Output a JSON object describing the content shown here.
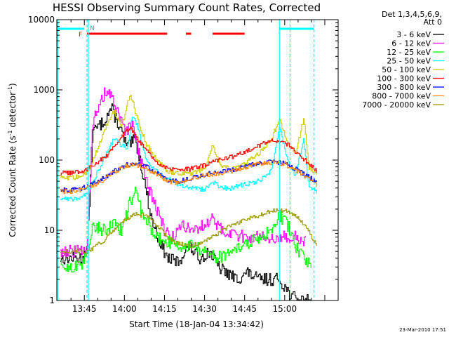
{
  "chart_data": {
    "type": "line",
    "title": "HESSI Observing Summary Count Rates, Corrected",
    "xlabel": "Start Time (18-Jan-04 13:34:42)",
    "ylabel": "Corrected Count Rate (s",
    "ylabel_sup1": "-1",
    "ylabel_mid": " detector",
    "ylabel_sup2": "-1",
    "ylabel_end": ")",
    "y_scale": "log",
    "ylim": [
      1,
      10000
    ],
    "xlim": [
      "13:34:42",
      "15:20:00"
    ],
    "x_ticks": [
      "13:45",
      "14:00",
      "14:15",
      "14:30",
      "14:45",
      "15:00"
    ],
    "y_ticks": [
      "1",
      "10",
      "100",
      "1000",
      "10000"
    ],
    "grid": false,
    "legend_position": "top-right",
    "legend_header": [
      "Det 1,3,4,5,6,9,",
      "Att 0"
    ],
    "timestamp": "23-Mar-2010 17:51",
    "markers": {
      "flare_flag": "F",
      "night_flag": "N"
    },
    "flare_flag_intervals": [
      [
        "13:46",
        "14:16"
      ],
      [
        "14:23",
        "14:25"
      ],
      [
        "14:33",
        "14:45"
      ]
    ],
    "attenuator_bars": [
      [
        "13:35",
        "13:45"
      ],
      [
        "14:58",
        "15:11"
      ]
    ],
    "vertical_lines": [
      {
        "time": "13:35",
        "style": "solid"
      },
      {
        "time": "13:46",
        "style": "dashed"
      },
      {
        "time": "13:46:30",
        "style": "solid"
      },
      {
        "time": "14:58",
        "style": "solid"
      },
      {
        "time": "15:02",
        "style": "dashed"
      },
      {
        "time": "15:11",
        "style": "dashed"
      }
    ],
    "series": [
      {
        "name": "3 - 6 keV",
        "color": "#000000",
        "points": [
          [
            "13:36",
            4
          ],
          [
            "13:44",
            4
          ],
          [
            "13:46",
            5
          ],
          [
            "13:48",
            250
          ],
          [
            "13:52",
            350
          ],
          [
            "13:55",
            550
          ],
          [
            "13:58",
            300
          ],
          [
            "14:01",
            150
          ],
          [
            "14:04",
            200
          ],
          [
            "14:07",
            60
          ],
          [
            "14:10",
            15
          ],
          [
            "14:13",
            7
          ],
          [
            "14:16",
            4
          ],
          [
            "14:20",
            3.5
          ],
          [
            "14:24",
            6
          ],
          [
            "14:28",
            4
          ],
          [
            "14:32",
            5
          ],
          [
            "14:35",
            3
          ],
          [
            "14:38",
            2.5
          ],
          [
            "14:42",
            2
          ],
          [
            "14:46",
            2.5
          ],
          [
            "14:50",
            2
          ],
          [
            "14:55",
            2
          ],
          [
            "14:58",
            2
          ],
          [
            "15:02",
            1.2
          ],
          [
            "15:05",
            1
          ],
          [
            "15:10",
            1
          ]
        ]
      },
      {
        "name": "6 - 12 keV",
        "color": "#ff00ff",
        "points": [
          [
            "13:36",
            5
          ],
          [
            "13:44",
            5
          ],
          [
            "13:46",
            6
          ],
          [
            "13:48",
            350
          ],
          [
            "13:50",
            500
          ],
          [
            "13:53",
            1000
          ],
          [
            "13:55",
            800
          ],
          [
            "13:58",
            400
          ],
          [
            "14:00",
            250
          ],
          [
            "14:03",
            300
          ],
          [
            "14:06",
            100
          ],
          [
            "14:09",
            40
          ],
          [
            "14:12",
            20
          ],
          [
            "14:15",
            10
          ],
          [
            "14:18",
            8
          ],
          [
            "14:22",
            12
          ],
          [
            "14:26",
            10
          ],
          [
            "14:30",
            12
          ],
          [
            "14:33",
            15
          ],
          [
            "14:36",
            10
          ],
          [
            "14:40",
            9
          ],
          [
            "14:45",
            8
          ],
          [
            "14:50",
            8
          ],
          [
            "14:55",
            8
          ],
          [
            "15:00",
            8
          ],
          [
            "15:04",
            8
          ],
          [
            "15:08",
            7
          ]
        ]
      },
      {
        "name": "12 - 25 keV",
        "color": "#00ff00",
        "points": [
          [
            "13:36",
            3
          ],
          [
            "13:44",
            3
          ],
          [
            "13:46",
            5
          ],
          [
            "13:48",
            12
          ],
          [
            "13:52",
            10
          ],
          [
            "13:56",
            12
          ],
          [
            "13:59",
            10
          ],
          [
            "14:02",
            25
          ],
          [
            "14:04",
            35
          ],
          [
            "14:06",
            20
          ],
          [
            "14:09",
            12
          ],
          [
            "14:12",
            8
          ],
          [
            "14:15",
            7
          ],
          [
            "14:20",
            6
          ],
          [
            "14:25",
            6
          ],
          [
            "14:30",
            5
          ],
          [
            "14:35",
            4
          ],
          [
            "14:40",
            5
          ],
          [
            "14:45",
            6
          ],
          [
            "14:50",
            8
          ],
          [
            "14:55",
            10
          ],
          [
            "14:58",
            16
          ],
          [
            "15:01",
            12
          ],
          [
            "15:04",
            6
          ],
          [
            "15:07",
            4
          ],
          [
            "15:10",
            3
          ]
        ]
      },
      {
        "name": "25 - 50 keV",
        "color": "#00ffff",
        "points": [
          [
            "13:36",
            28
          ],
          [
            "13:40",
            28
          ],
          [
            "13:44",
            30
          ],
          [
            "13:46",
            32
          ],
          [
            "13:50",
            70
          ],
          [
            "13:53",
            120
          ],
          [
            "13:56",
            200
          ],
          [
            "13:59",
            160
          ],
          [
            "14:01",
            150
          ],
          [
            "14:03",
            450
          ],
          [
            "14:05",
            300
          ],
          [
            "14:08",
            100
          ],
          [
            "14:12",
            70
          ],
          [
            "14:16",
            55
          ],
          [
            "14:20",
            45
          ],
          [
            "14:25",
            40
          ],
          [
            "14:30",
            38
          ],
          [
            "14:33",
            50
          ],
          [
            "14:36",
            40
          ],
          [
            "14:40",
            40
          ],
          [
            "14:45",
            45
          ],
          [
            "14:50",
            50
          ],
          [
            "14:55",
            70
          ],
          [
            "14:58",
            300
          ],
          [
            "15:01",
            100
          ],
          [
            "15:04",
            60
          ],
          [
            "15:07",
            200
          ],
          [
            "15:09",
            40
          ],
          [
            "15:12",
            35
          ]
        ]
      },
      {
        "name": "50 - 100 keV",
        "color": "#cccc00",
        "points": [
          [
            "13:36",
            55
          ],
          [
            "13:40",
            55
          ],
          [
            "13:44",
            60
          ],
          [
            "13:46",
            65
          ],
          [
            "13:50",
            150
          ],
          [
            "13:53",
            300
          ],
          [
            "13:56",
            500
          ],
          [
            "13:59",
            300
          ],
          [
            "14:02",
            900
          ],
          [
            "14:04",
            500
          ],
          [
            "14:08",
            170
          ],
          [
            "14:12",
            100
          ],
          [
            "14:16",
            70
          ],
          [
            "14:20",
            65
          ],
          [
            "14:25",
            65
          ],
          [
            "14:30",
            75
          ],
          [
            "14:33",
            160
          ],
          [
            "14:36",
            80
          ],
          [
            "14:40",
            75
          ],
          [
            "14:45",
            90
          ],
          [
            "14:50",
            120
          ],
          [
            "14:55",
            200
          ],
          [
            "14:58",
            380
          ],
          [
            "15:01",
            180
          ],
          [
            "15:04",
            120
          ],
          [
            "15:07",
            400
          ],
          [
            "15:09",
            80
          ],
          [
            "15:12",
            60
          ]
        ]
      },
      {
        "name": "100 - 300 keV",
        "color": "#ff0000",
        "points": [
          [
            "13:36",
            65
          ],
          [
            "13:40",
            65
          ],
          [
            "13:44",
            70
          ],
          [
            "13:46",
            75
          ],
          [
            "13:50",
            95
          ],
          [
            "13:54",
            120
          ],
          [
            "13:58",
            200
          ],
          [
            "14:02",
            300
          ],
          [
            "14:05",
            200
          ],
          [
            "14:08",
            140
          ],
          [
            "14:12",
            95
          ],
          [
            "14:16",
            75
          ],
          [
            "14:20",
            72
          ],
          [
            "14:25",
            75
          ],
          [
            "14:30",
            85
          ],
          [
            "14:35",
            100
          ],
          [
            "14:40",
            110
          ],
          [
            "14:45",
            130
          ],
          [
            "14:50",
            160
          ],
          [
            "14:55",
            190
          ],
          [
            "14:58",
            190
          ],
          [
            "15:02",
            160
          ],
          [
            "15:06",
            110
          ],
          [
            "15:10",
            85
          ],
          [
            "15:12",
            70
          ]
        ]
      },
      {
        "name": "300 - 800 keV",
        "color": "#0000ff",
        "points": [
          [
            "13:36",
            38
          ],
          [
            "13:40",
            38
          ],
          [
            "13:44",
            40
          ],
          [
            "13:48",
            45
          ],
          [
            "13:52",
            55
          ],
          [
            "13:56",
            70
          ],
          [
            "14:00",
            85
          ],
          [
            "14:04",
            90
          ],
          [
            "14:08",
            80
          ],
          [
            "14:12",
            65
          ],
          [
            "14:16",
            52
          ],
          [
            "14:20",
            50
          ],
          [
            "14:25",
            55
          ],
          [
            "14:30",
            62
          ],
          [
            "14:35",
            68
          ],
          [
            "14:40",
            72
          ],
          [
            "14:45",
            80
          ],
          [
            "14:50",
            90
          ],
          [
            "14:55",
            95
          ],
          [
            "15:00",
            90
          ],
          [
            "15:04",
            75
          ],
          [
            "15:08",
            60
          ],
          [
            "15:12",
            48
          ]
        ]
      },
      {
        "name": "800 - 7000 keV",
        "color": "#ff8800",
        "points": [
          [
            "13:36",
            36
          ],
          [
            "13:40",
            36
          ],
          [
            "13:44",
            38
          ],
          [
            "13:48",
            42
          ],
          [
            "13:52",
            52
          ],
          [
            "13:56",
            68
          ],
          [
            "14:00",
            82
          ],
          [
            "14:04",
            88
          ],
          [
            "14:08",
            78
          ],
          [
            "14:12",
            62
          ],
          [
            "14:16",
            50
          ],
          [
            "14:20",
            48
          ],
          [
            "14:25",
            52
          ],
          [
            "14:30",
            60
          ],
          [
            "14:35",
            65
          ],
          [
            "14:40",
            70
          ],
          [
            "14:45",
            78
          ],
          [
            "14:50",
            88
          ],
          [
            "14:55",
            92
          ],
          [
            "15:00",
            88
          ],
          [
            "15:04",
            72
          ],
          [
            "15:08",
            58
          ],
          [
            "15:12",
            45
          ]
        ]
      },
      {
        "name": "7000 - 20000 keV",
        "color": "#999900",
        "points": [
          [
            "13:36",
            5
          ],
          [
            "13:44",
            5
          ],
          [
            "13:46",
            5
          ],
          [
            "13:48",
            5.5
          ],
          [
            "13:52",
            7
          ],
          [
            "13:56",
            10
          ],
          [
            "14:00",
            14
          ],
          [
            "14:04",
            17
          ],
          [
            "14:08",
            16
          ],
          [
            "14:12",
            12
          ],
          [
            "14:16",
            8
          ],
          [
            "14:20",
            6.5
          ],
          [
            "14:25",
            6
          ],
          [
            "14:30",
            7
          ],
          [
            "14:35",
            9
          ],
          [
            "14:40",
            12
          ],
          [
            "14:45",
            14
          ],
          [
            "14:50",
            16
          ],
          [
            "14:55",
            19
          ],
          [
            "15:00",
            19
          ],
          [
            "15:04",
            16
          ],
          [
            "15:08",
            11
          ],
          [
            "15:12",
            6
          ]
        ]
      }
    ]
  }
}
